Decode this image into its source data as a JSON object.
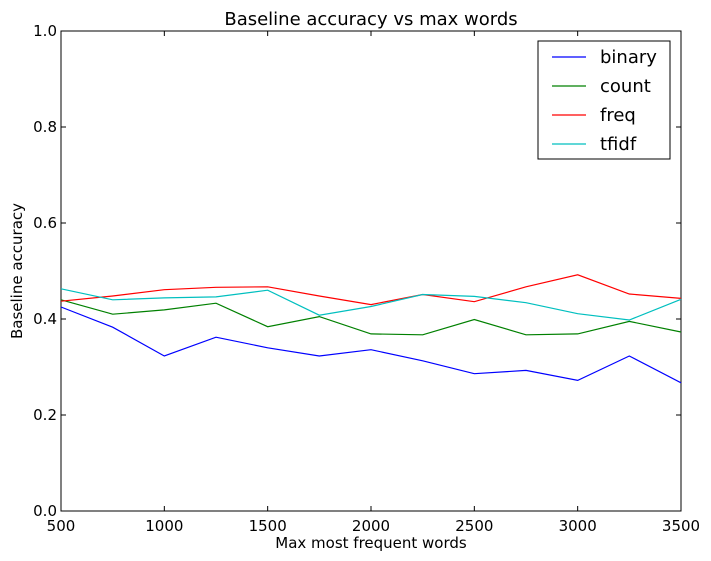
{
  "chart_data": {
    "type": "line",
    "title": "Baseline accuracy vs max words",
    "xlabel": "Max most frequent words",
    "ylabel": "Baseline accuracy",
    "xlim": [
      500,
      3500
    ],
    "ylim": [
      0.0,
      1.0
    ],
    "xticks": [
      500,
      1000,
      1500,
      2000,
      2500,
      3000,
      3500
    ],
    "yticks": [
      0.0,
      0.2,
      0.4,
      0.6,
      0.8,
      1.0
    ],
    "xtick_labels": [
      "500",
      "1000",
      "1500",
      "2000",
      "2500",
      "3000",
      "3500"
    ],
    "ytick_labels": [
      "0.0",
      "0.2",
      "0.4",
      "0.6",
      "0.8",
      "1.0"
    ],
    "grid": false,
    "legend_position": "top-right",
    "x": [
      500,
      750,
      1000,
      1250,
      1500,
      1750,
      2000,
      2250,
      2500,
      2750,
      3000,
      3250,
      3500
    ],
    "series": [
      {
        "name": "binary",
        "color": "#0000ff",
        "values": [
          0.425,
          0.383,
          0.323,
          0.362,
          0.34,
          0.323,
          0.336,
          0.313,
          0.286,
          0.293,
          0.272,
          0.323,
          0.267
        ]
      },
      {
        "name": "count",
        "color": "#008000",
        "values": [
          0.44,
          0.41,
          0.419,
          0.433,
          0.384,
          0.405,
          0.369,
          0.367,
          0.399,
          0.367,
          0.369,
          0.395,
          0.373
        ]
      },
      {
        "name": "freq",
        "color": "#ff0000",
        "values": [
          0.437,
          0.448,
          0.461,
          0.466,
          0.467,
          0.448,
          0.43,
          0.451,
          0.436,
          0.467,
          0.492,
          0.452,
          0.443
        ]
      },
      {
        "name": "tfidf",
        "color": "#00bfbf",
        "values": [
          0.463,
          0.44,
          0.444,
          0.446,
          0.46,
          0.408,
          0.426,
          0.451,
          0.447,
          0.434,
          0.411,
          0.398,
          0.441
        ]
      }
    ]
  }
}
